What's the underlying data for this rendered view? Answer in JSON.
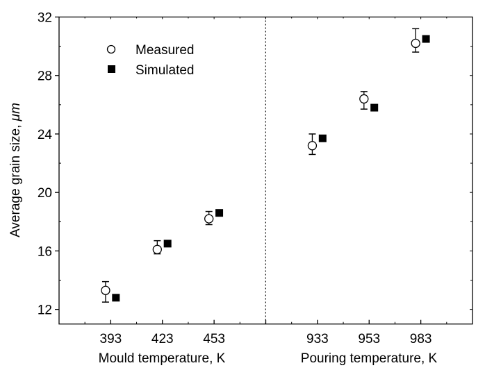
{
  "chart_data": {
    "type": "scatter",
    "ylabel_text": "Average grain size, ",
    "ylabel_unit": "μm",
    "ylim": [
      11,
      32
    ],
    "yticks": [
      12,
      16,
      20,
      24,
      28,
      32
    ],
    "grid": false,
    "legend_position": "top-left",
    "panels": [
      {
        "xlabel": "Mould temperature, K",
        "categories": [
          "393",
          "423",
          "453"
        ]
      },
      {
        "xlabel": "Pouring temperature, K",
        "categories": [
          "933",
          "953",
          "983"
        ]
      }
    ],
    "series": [
      {
        "name": "Measured",
        "marker": "open-circle",
        "values": [
          13.3,
          16.1,
          18.2,
          23.2,
          26.4,
          30.2
        ],
        "error_low": [
          12.5,
          15.8,
          17.8,
          22.6,
          25.7,
          29.6
        ],
        "error_high": [
          13.9,
          16.7,
          18.7,
          24.0,
          26.9,
          31.2
        ]
      },
      {
        "name": "Simulated",
        "marker": "filled-square",
        "values": [
          12.8,
          16.5,
          18.6,
          23.7,
          25.8,
          30.5
        ]
      }
    ]
  }
}
